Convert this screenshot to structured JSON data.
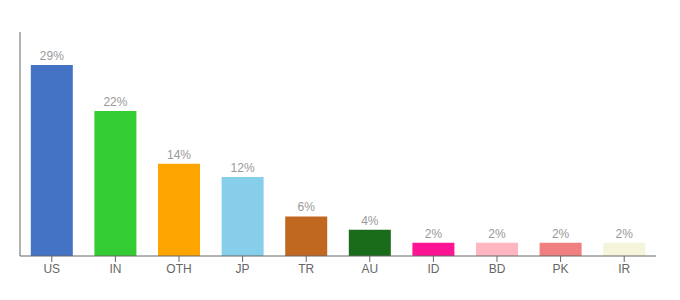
{
  "chart_data": {
    "type": "bar",
    "categories": [
      "US",
      "IN",
      "OTH",
      "JP",
      "TR",
      "AU",
      "ID",
      "BD",
      "PK",
      "IR"
    ],
    "values": [
      29,
      22,
      14,
      12,
      6,
      4,
      2,
      2,
      2,
      2
    ],
    "value_labels": [
      "29%",
      "22%",
      "14%",
      "12%",
      "6%",
      "4%",
      "2%",
      "2%",
      "2%",
      "2%"
    ],
    "colors": [
      "#4472C4",
      "#33CC33",
      "#FFA500",
      "#87CEEB",
      "#C06820",
      "#1A6B1A",
      "#FF1493",
      "#FFB6C1",
      "#F08080",
      "#F5F5DC"
    ],
    "ylim": [
      0,
      34
    ],
    "data_labels": true,
    "tick_labels": "x",
    "grid": false
  }
}
